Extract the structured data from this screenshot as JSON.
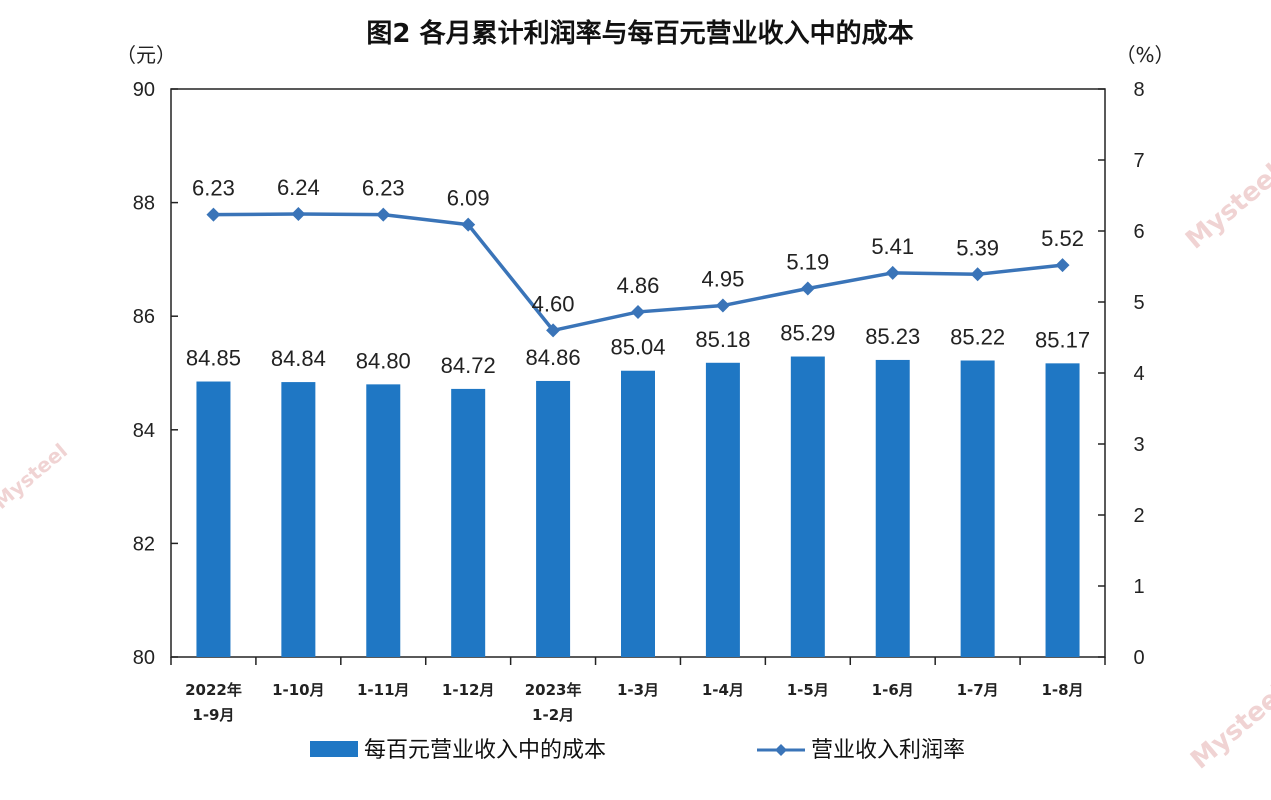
{
  "chart_data": {
    "type": "bar",
    "title": "图2  各月累计利润率与每百元营业收入中的成本",
    "left_unit": "（元）",
    "right_unit": "（%）",
    "categories": [
      [
        "2022年",
        "1-9月"
      ],
      [
        "1-10月"
      ],
      [
        "1-11月"
      ],
      [
        "1-12月"
      ],
      [
        "2023年",
        "1-2月"
      ],
      [
        "1-3月"
      ],
      [
        "1-4月"
      ],
      [
        "1-5月"
      ],
      [
        "1-6月"
      ],
      [
        "1-7月"
      ],
      [
        "1-8月"
      ]
    ],
    "left_axis": {
      "ylim": [
        80,
        90
      ],
      "ticks": [
        80,
        82,
        84,
        86,
        88,
        90
      ]
    },
    "right_axis": {
      "ylim": [
        0,
        8
      ],
      "ticks": [
        0,
        1,
        2,
        3,
        4,
        5,
        6,
        7,
        8
      ]
    },
    "series": [
      {
        "name": "每百元营业收入中的成本",
        "type": "bar",
        "axis": "left",
        "color": "#1f77c4",
        "values": [
          84.85,
          84.84,
          84.8,
          84.72,
          84.86,
          85.04,
          85.18,
          85.29,
          85.23,
          85.22,
          85.17
        ],
        "labels": [
          "84.85",
          "84.84",
          "84.80",
          "84.72",
          "84.86",
          "85.04",
          "85.18",
          "85.29",
          "85.23",
          "85.22",
          "85.17"
        ]
      },
      {
        "name": "营业收入利润率",
        "type": "line",
        "axis": "right",
        "color": "#3a74b8",
        "values": [
          6.23,
          6.24,
          6.23,
          6.09,
          4.6,
          4.86,
          4.95,
          5.19,
          5.41,
          5.39,
          5.52
        ],
        "labels": [
          "6.23",
          "6.24",
          "6.23",
          "6.09",
          "4.60",
          "4.86",
          "4.95",
          "5.19",
          "5.41",
          "5.39",
          "5.52"
        ]
      }
    ],
    "grid": false,
    "legend_position": "bottom"
  },
  "watermark_text": "Mysteel"
}
